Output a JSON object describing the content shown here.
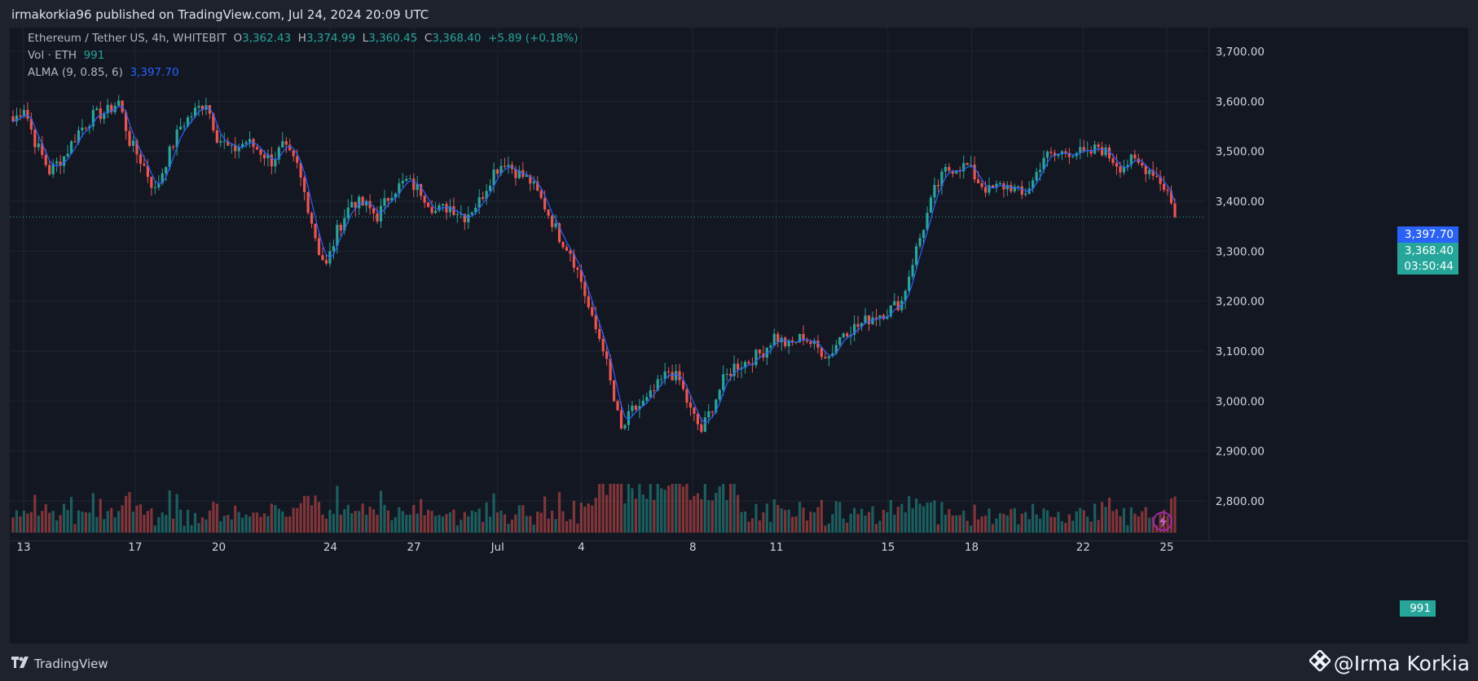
{
  "header": {
    "published": "irmakorkia96 published on TradingView.com, Jul 24, 2024 20:09 UTC"
  },
  "legend": {
    "symbol": "Ethereum / Tether US, 4h, WHITEBIT",
    "o_label": "O",
    "o_value": "3,362.43",
    "h_label": "H",
    "h_value": "3,374.99",
    "l_label": "L",
    "l_value": "3,360.45",
    "c_label": "C",
    "c_value": "3,368.40",
    "change": "+5.89 (+0.18%)",
    "vol_label": "Vol · ETH",
    "vol_value": "991",
    "alma_label": "ALMA (9, 0.85, 6)",
    "alma_value": "3,397.70"
  },
  "price_axis": {
    "labels": [
      "3,700.00",
      "3,600.00",
      "3,500.00",
      "3,400.00",
      "3,300.00",
      "3,200.00",
      "3,100.00",
      "3,000.00",
      "2,900.00",
      "2,800.00"
    ],
    "alma_tag": "3,397.70",
    "last_price_tag": "3,368.40",
    "countdown": "03:50:44",
    "volume_tag": "991"
  },
  "time_axis": {
    "labels": [
      "13",
      "17",
      "20",
      "24",
      "27",
      "Jul",
      "4",
      "8",
      "11",
      "15",
      "18",
      "22",
      "25"
    ]
  },
  "colors": {
    "up": "#26a69a",
    "down": "#ef5350",
    "alma": "#2962ff",
    "background": "#131722"
  },
  "footer": {
    "brand": "TradingView",
    "author": "@Irma Korkia"
  },
  "chart_data": {
    "type": "candlestick",
    "timeframe": "4h",
    "y_range": [
      2740,
      3760
    ],
    "x_ticks": [
      "13",
      "17",
      "20",
      "24",
      "27",
      "Jul",
      "4",
      "8",
      "11",
      "15",
      "18",
      "22",
      "25"
    ],
    "anchors": [
      [
        0,
        3560
      ],
      [
        3,
        3590
      ],
      [
        6,
        3520
      ],
      [
        10,
        3460
      ],
      [
        14,
        3490
      ],
      [
        18,
        3540
      ],
      [
        22,
        3570
      ],
      [
        26,
        3580
      ],
      [
        29,
        3600
      ],
      [
        32,
        3520
      ],
      [
        36,
        3470
      ],
      [
        39,
        3420
      ],
      [
        42,
        3480
      ],
      [
        46,
        3550
      ],
      [
        50,
        3580
      ],
      [
        53,
        3600
      ],
      [
        56,
        3530
      ],
      [
        60,
        3500
      ],
      [
        64,
        3520
      ],
      [
        68,
        3500
      ],
      [
        71,
        3480
      ],
      [
        74,
        3510
      ],
      [
        78,
        3470
      ],
      [
        81,
        3390
      ],
      [
        84,
        3300
      ],
      [
        86,
        3270
      ],
      [
        89,
        3340
      ],
      [
        93,
        3400
      ],
      [
        97,
        3390
      ],
      [
        100,
        3370
      ],
      [
        104,
        3420
      ],
      [
        108,
        3440
      ],
      [
        112,
        3420
      ],
      [
        116,
        3380
      ],
      [
        120,
        3390
      ],
      [
        124,
        3370
      ],
      [
        128,
        3400
      ],
      [
        132,
        3460
      ],
      [
        135,
        3480
      ],
      [
        138,
        3460
      ],
      [
        142,
        3440
      ],
      [
        146,
        3390
      ],
      [
        150,
        3330
      ],
      [
        153,
        3300
      ],
      [
        156,
        3240
      ],
      [
        159,
        3160
      ],
      [
        162,
        3110
      ],
      [
        165,
        3000
      ],
      [
        167,
        2940
      ],
      [
        170,
        2980
      ],
      [
        174,
        3000
      ],
      [
        177,
        3030
      ],
      [
        180,
        3060
      ],
      [
        183,
        3040
      ],
      [
        186,
        2980
      ],
      [
        189,
        2940
      ],
      [
        192,
        2990
      ],
      [
        195,
        3040
      ],
      [
        198,
        3070
      ],
      [
        202,
        3080
      ],
      [
        206,
        3100
      ],
      [
        209,
        3130
      ],
      [
        213,
        3110
      ],
      [
        217,
        3130
      ],
      [
        220,
        3110
      ],
      [
        224,
        3090
      ],
      [
        228,
        3140
      ],
      [
        232,
        3150
      ],
      [
        236,
        3170
      ],
      [
        240,
        3180
      ],
      [
        244,
        3200
      ],
      [
        247,
        3280
      ],
      [
        250,
        3350
      ],
      [
        253,
        3420
      ],
      [
        256,
        3460
      ],
      [
        259,
        3470
      ],
      [
        262,
        3470
      ],
      [
        265,
        3440
      ],
      [
        268,
        3420
      ],
      [
        271,
        3430
      ],
      [
        274,
        3430
      ],
      [
        277,
        3410
      ],
      [
        280,
        3440
      ],
      [
        283,
        3490
      ],
      [
        286,
        3490
      ],
      [
        289,
        3500
      ],
      [
        292,
        3500
      ],
      [
        295,
        3490
      ],
      [
        298,
        3510
      ],
      [
        301,
        3490
      ],
      [
        304,
        3470
      ],
      [
        307,
        3480
      ],
      [
        310,
        3470
      ],
      [
        313,
        3460
      ],
      [
        317,
        3420
      ],
      [
        319,
        3368
      ]
    ],
    "last": {
      "open": 3362.43,
      "high": 3374.99,
      "low": 3360.45,
      "close": 3368.4,
      "volume": 991,
      "alma": 3397.7
    }
  }
}
